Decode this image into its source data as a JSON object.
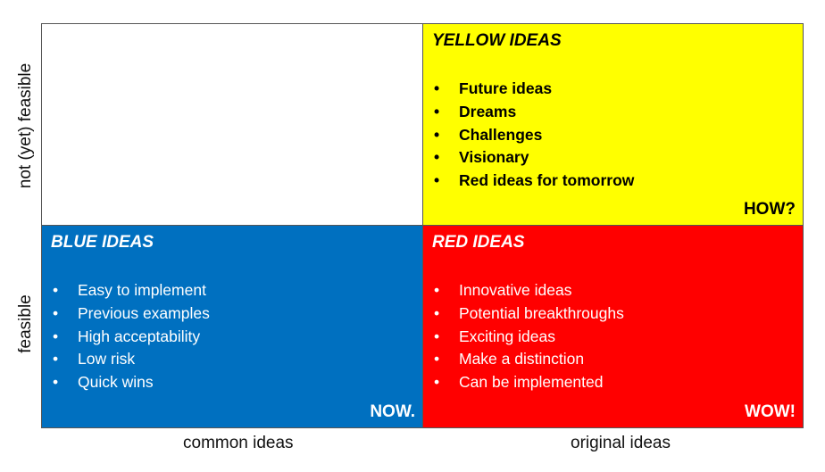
{
  "quadrants": {
    "yellow": {
      "title": "YELLOW IDEAS",
      "items": [
        "Future ideas",
        "Dreams",
        "Challenges",
        "Visionary",
        "Red ideas for tomorrow"
      ],
      "tag": "HOW?",
      "bg": "#FFFF00",
      "text_color": "#000000"
    },
    "blue": {
      "title": "BLUE IDEAS",
      "items": [
        "Easy to implement",
        "Previous examples",
        "High acceptability",
        "Low risk",
        "Quick wins"
      ],
      "tag": "NOW.",
      "bg": "#0070C0",
      "text_color": "#FFFFFF"
    },
    "red": {
      "title": "RED IDEAS",
      "items": [
        "Innovative ideas",
        "Potential breakthroughs",
        "Exciting ideas",
        "Make a distinction",
        "Can be implemented"
      ],
      "tag": "WOW!",
      "bg": "#FF0000",
      "text_color": "#FFFFFF"
    }
  },
  "axes": {
    "x_left": "common ideas",
    "x_right": "original ideas",
    "y_top": "not (yet) feasible",
    "y_bottom": "feasible"
  }
}
